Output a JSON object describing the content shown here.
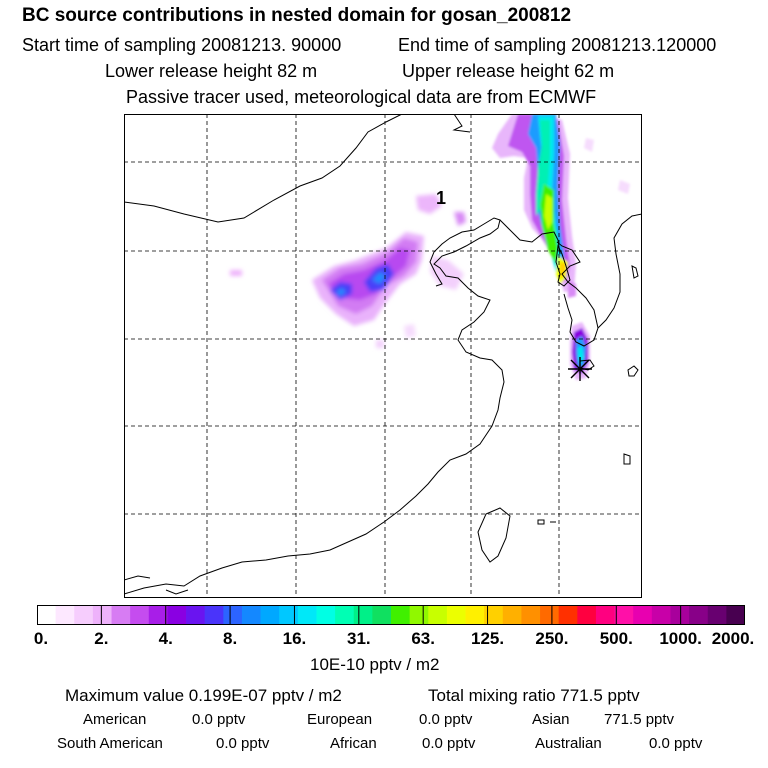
{
  "header": {
    "title": "BC  source contributions in nested domain for gosan_200812",
    "start_label": "Start time of sampling 20081213. 90000",
    "end_label": "End time of sampling 20081213.120000",
    "lower_release": "Lower release height   82 m",
    "upper_release": "Upper release height   62 m",
    "tracer_info": "Passive tracer used, meteorological data are from ECMWF"
  },
  "map": {
    "marker_label": "1",
    "receptor_symbol": "asterisk"
  },
  "colorbar": {
    "colors": [
      "#ffffff",
      "#fde8ff",
      "#f6cdfd",
      "#eeb2fb",
      "#d77cf3",
      "#c54cef",
      "#a81ee8",
      "#8a00e2",
      "#6a14f0",
      "#4a34fa",
      "#2c64ff",
      "#1488ff",
      "#00a8ff",
      "#00c8ff",
      "#00e8f8",
      "#00ffe4",
      "#00ffb4",
      "#00f088",
      "#10e060",
      "#40f000",
      "#90f800",
      "#c8ff00",
      "#ecff00",
      "#fff000",
      "#ffd000",
      "#ffb000",
      "#ff9000",
      "#ff6a00",
      "#ff3000",
      "#ff0040",
      "#ff0080",
      "#ff10a8",
      "#e800b0",
      "#c800a8",
      "#a8009c",
      "#880088",
      "#680070",
      "#480050"
    ],
    "tick_labels": [
      "0.",
      "2.",
      "4.",
      "8.",
      "16.",
      "31.",
      "63.",
      "125.",
      "250.",
      "500.",
      "1000.",
      "2000."
    ],
    "units": "10E-10 pptv / m2"
  },
  "summary": {
    "maximum": "Maximum value  0.199E-07 pptv / m2",
    "total": "Total mixing ratio      771.5 pptv"
  },
  "sources": {
    "row1": [
      {
        "name": "American",
        "value": "0.0 pptv"
      },
      {
        "name": "European",
        "value": "0.0 pptv"
      },
      {
        "name": "Asian",
        "value": "771.5 pptv"
      }
    ],
    "row2": [
      {
        "name": "South American",
        "value": "0.0 pptv"
      },
      {
        "name": "African",
        "value": "0.0 pptv"
      },
      {
        "name": "Australian",
        "value": "0.0 pptv"
      }
    ]
  }
}
